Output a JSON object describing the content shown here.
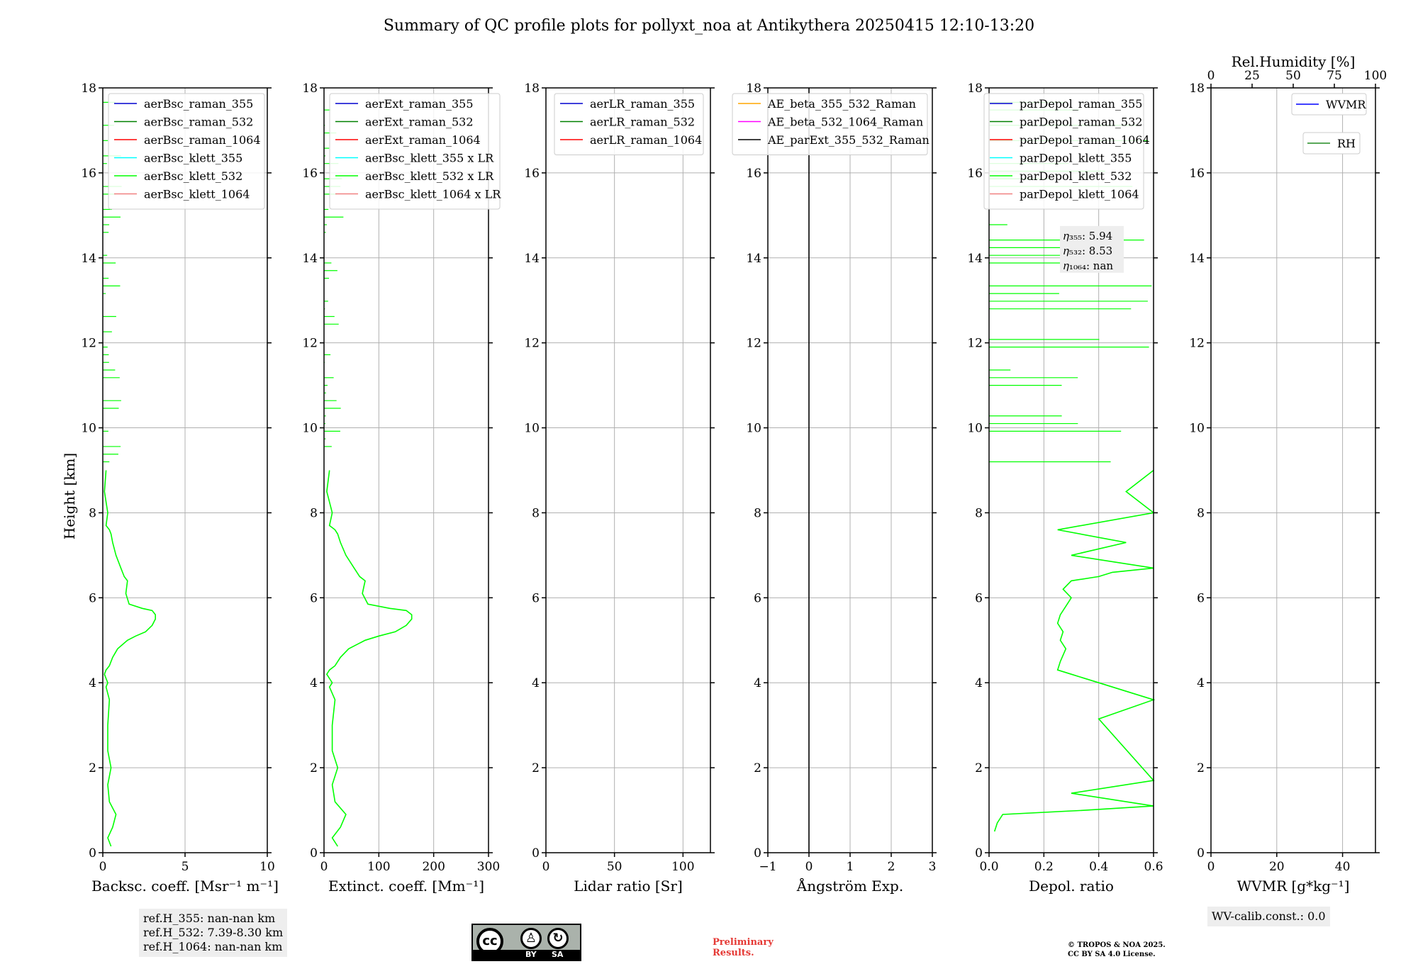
{
  "title": "Summary of QC profile plots for pollyxt_noa at Antikythera 20250415 12:10-13:20",
  "ylabel": "Height [km]",
  "colors": {
    "raman355": "#0000cd",
    "raman532": "#008000",
    "raman1064": "#ff0000",
    "klett355": "#00ffff",
    "klett532": "#00ff00",
    "klett1064": "#f08080",
    "ae1": "#ffa500",
    "ae2": "#ff00ff",
    "ae3": "#000000",
    "wvmr": "#0000ff",
    "rh": "#228b22"
  },
  "chart_data": [
    {
      "type": "line",
      "name": "backscatter",
      "xlabel": "Backsc. coeff. [Msr⁻¹ m⁻¹]",
      "xlim": [
        0,
        10
      ],
      "ylim": [
        0,
        18
      ],
      "xticks": [
        0,
        5,
        10
      ],
      "yticks": [
        0,
        2,
        4,
        6,
        8,
        10,
        12,
        14,
        16,
        18
      ],
      "legend": [
        "aerBsc_raman_355",
        "aerBsc_raman_532",
        "aerBsc_raman_1064",
        "aerBsc_klett_355",
        "aerBsc_klett_532",
        "aerBsc_klett_1064"
      ],
      "series": [
        {
          "name": "aerBsc_klett_532",
          "x": [
            0.5,
            0.3,
            0.6,
            0.8,
            0.4,
            0.3,
            0.5,
            0.3,
            0.3,
            0.4,
            0.2,
            0.3,
            0.2,
            0.1,
            0.2,
            0.4,
            0.6,
            0.9,
            1.5,
            2.0,
            2.6,
            3.0,
            3.2,
            3.2,
            3.0,
            2.4,
            1.6,
            1.4,
            1.5,
            1.3,
            1.1,
            0.8,
            0.6,
            0.5,
            0.4,
            0.2,
            0.3,
            0.1,
            0.2
          ],
          "y": [
            0.15,
            0.35,
            0.6,
            0.9,
            1.2,
            1.6,
            2.0,
            2.4,
            3.0,
            3.6,
            3.9,
            4.0,
            4.1,
            4.2,
            4.3,
            4.4,
            4.6,
            4.8,
            5.0,
            5.1,
            5.2,
            5.35,
            5.5,
            5.6,
            5.7,
            5.75,
            5.85,
            6.1,
            6.4,
            6.5,
            6.7,
            7.0,
            7.3,
            7.5,
            7.6,
            7.7,
            8.0,
            8.5,
            9.0
          ]
        }
      ]
    },
    {
      "type": "line",
      "name": "extinction",
      "xlabel": "Extinct. coeff. [Mm⁻¹]",
      "xlim": [
        0,
        300
      ],
      "ylim": [
        0,
        18
      ],
      "xticks": [
        0,
        100,
        200,
        300
      ],
      "yticks": [
        0,
        2,
        4,
        6,
        8,
        10,
        12,
        14,
        16,
        18
      ],
      "legend": [
        "aerExt_raman_355",
        "aerExt_raman_532",
        "aerExt_raman_1064",
        "aerBsc_klett_355 x LR",
        "aerBsc_klett_532 x LR",
        "aerBsc_klett_1064 x LR"
      ],
      "series": [
        {
          "name": "aerBsc_klett_532 x LR",
          "x": [
            25,
            15,
            30,
            40,
            20,
            15,
            25,
            15,
            15,
            20,
            10,
            15,
            10,
            5,
            10,
            20,
            30,
            45,
            75,
            100,
            130,
            150,
            160,
            160,
            150,
            120,
            80,
            70,
            75,
            65,
            55,
            40,
            30,
            25,
            20,
            10,
            15,
            5,
            10
          ],
          "y": [
            0.15,
            0.35,
            0.6,
            0.9,
            1.2,
            1.6,
            2.0,
            2.4,
            3.0,
            3.6,
            3.9,
            4.0,
            4.1,
            4.2,
            4.3,
            4.4,
            4.6,
            4.8,
            5.0,
            5.1,
            5.2,
            5.35,
            5.5,
            5.6,
            5.7,
            5.75,
            5.85,
            6.1,
            6.4,
            6.5,
            6.7,
            7.0,
            7.3,
            7.5,
            7.6,
            7.7,
            8.0,
            8.5,
            9.0
          ]
        }
      ]
    },
    {
      "type": "line",
      "name": "lidar-ratio",
      "xlabel": "Lidar ratio [Sr]",
      "xlim": [
        0,
        120
      ],
      "ylim": [
        0,
        18
      ],
      "xticks": [
        0,
        50,
        100
      ],
      "yticks": [
        0,
        2,
        4,
        6,
        8,
        10,
        12,
        14,
        16,
        18
      ],
      "legend": [
        "aerLR_raman_355",
        "aerLR_raman_532",
        "aerLR_raman_1064"
      ],
      "series": []
    },
    {
      "type": "line",
      "name": "angstrom",
      "xlabel": "Ångström Exp.",
      "xlim": [
        -1,
        3
      ],
      "ylim": [
        0,
        18
      ],
      "xticks": [
        -1,
        0,
        1,
        2,
        3
      ],
      "xtick_labels": [
        "−1",
        "0",
        "1",
        "2",
        "3"
      ],
      "yticks": [
        0,
        2,
        4,
        6,
        8,
        10,
        12,
        14,
        16,
        18
      ],
      "legend": [
        "AE_beta_355_532_Raman",
        "AE_beta_532_1064_Raman",
        "AE_parExt_355_532_Raman"
      ],
      "series": [
        {
          "name": "zero-line",
          "x": [
            0,
            0
          ],
          "y": [
            0,
            18
          ]
        }
      ]
    },
    {
      "type": "line",
      "name": "depolarization",
      "xlabel": "Depol. ratio",
      "xlim": [
        0,
        0.6
      ],
      "ylim": [
        0,
        18
      ],
      "xticks": [
        0,
        0.2,
        0.4,
        0.6
      ],
      "xtick_labels": [
        "0.0",
        "0.2",
        "0.4",
        "0.6"
      ],
      "yticks": [
        0,
        2,
        4,
        6,
        8,
        10,
        12,
        14,
        16,
        18
      ],
      "legend": [
        "parDepol_raman_355",
        "parDepol_raman_532",
        "parDepol_raman_1064",
        "parDepol_klett_355",
        "parDepol_klett_532",
        "parDepol_klett_1064"
      ],
      "series": [
        {
          "name": "parDepol_klett_532",
          "x": [
            0.02,
            0.03,
            0.05,
            0.35,
            0.6,
            0.3,
            0.6,
            0.4,
            0.6,
            0.5,
            0.4,
            0.3,
            0.25,
            0.26,
            0.28,
            0.26,
            0.27,
            0.25,
            0.26,
            0.28,
            0.3,
            0.27,
            0.3,
            0.4,
            0.45,
            0.6,
            0.3,
            0.5,
            0.25,
            0.6,
            0.5,
            0.6
          ],
          "y": [
            0.5,
            0.7,
            0.9,
            1.0,
            1.1,
            1.4,
            1.7,
            3.15,
            3.6,
            3.8,
            4.0,
            4.2,
            4.3,
            4.5,
            4.8,
            5.0,
            5.2,
            5.4,
            5.6,
            5.8,
            6.0,
            6.2,
            6.4,
            6.5,
            6.6,
            6.7,
            7.0,
            7.3,
            7.6,
            8.0,
            8.5,
            9.0
          ]
        }
      ],
      "annotation": {
        "eta355": "𝜂₃₅₅: 5.94",
        "eta532": "𝜂₅₃₂: 8.53",
        "eta1064": "𝜂₁₀₆₄: nan"
      }
    },
    {
      "type": "line",
      "name": "water-vapor",
      "xlabel": "WVMR [g*kg⁻¹]",
      "xlim": [
        0,
        50
      ],
      "ylim": [
        0,
        18
      ],
      "xticks": [
        0,
        20,
        40
      ],
      "yticks": [
        0,
        2,
        4,
        6,
        8,
        10,
        12,
        14,
        16,
        18
      ],
      "top_axis": {
        "label": "Rel.Humidity [%]",
        "ticks": [
          0,
          25,
          50,
          75,
          100
        ]
      },
      "legend": [
        "WVMR",
        "RH"
      ],
      "series": []
    }
  ],
  "refbox": {
    "l1": "ref.H_355: nan-nan km",
    "l2": "ref.H_532: 7.39-8.30 km",
    "l3": "ref.H_1064: nan-nan km"
  },
  "license_badge": {
    "cc": "cc",
    "by": "BY",
    "sa": "SA"
  },
  "preliminary": {
    "l1": "Preliminary",
    "l2": "Results."
  },
  "copyright": {
    "l1": "© TROPOS & NOA 2025.",
    "l2": "CC BY SA 4.0 License."
  },
  "wvcalib": "WV-calib.const.: 0.0"
}
